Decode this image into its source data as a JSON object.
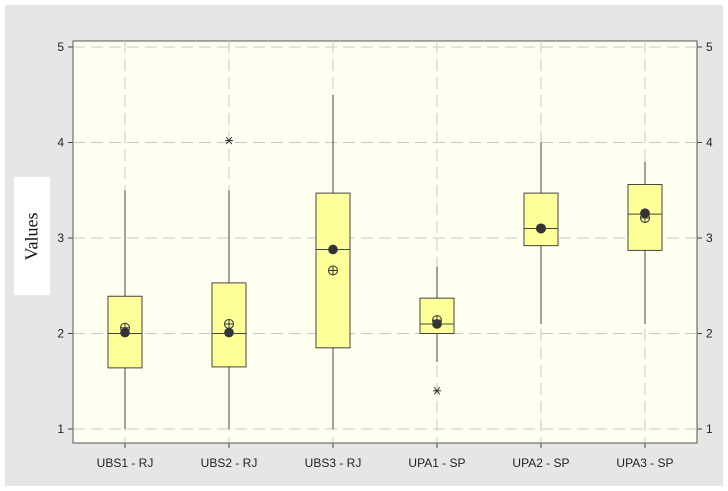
{
  "chart_data": {
    "type": "boxplot",
    "ylabel": "Values",
    "ylim": [
      1,
      5
    ],
    "yticks": [
      "1",
      "2",
      "3",
      "4",
      "5"
    ],
    "grid": true,
    "categories": [
      "UBS1 - RJ",
      "UBS2 - RJ",
      "UBS3 - RJ",
      "UPA1 - SP",
      "UPA2 - SP",
      "UPA3 - SP"
    ],
    "boxes": [
      {
        "category": "UBS1 - RJ",
        "whisker_low": 1.0,
        "q1": 1.64,
        "median": 2.0,
        "q3": 2.39,
        "whisker_high": 3.5,
        "median_dot": 2.01,
        "mean": 2.06,
        "outliers": []
      },
      {
        "category": "UBS2 - RJ",
        "whisker_low": 1.0,
        "q1": 1.65,
        "median": 2.0,
        "q3": 2.53,
        "whisker_high": 3.5,
        "median_dot": 2.01,
        "mean": 2.1,
        "outliers": [
          4.02
        ]
      },
      {
        "category": "UBS3 - RJ",
        "whisker_low": 1.0,
        "q1": 1.85,
        "median": 2.88,
        "q3": 3.47,
        "whisker_high": 4.5,
        "median_dot": 2.88,
        "mean": 2.66,
        "outliers": []
      },
      {
        "category": "UPA1 - SP",
        "whisker_low": 1.7,
        "q1": 2.0,
        "median": 2.1,
        "q3": 2.37,
        "whisker_high": 2.7,
        "median_dot": 2.1,
        "mean": 2.14,
        "outliers": [
          1.4
        ]
      },
      {
        "category": "UPA2 - SP",
        "whisker_low": 2.1,
        "q1": 2.92,
        "median": 3.1,
        "q3": 3.47,
        "whisker_high": 4.0,
        "median_dot": 3.1,
        "mean": 3.1,
        "outliers": []
      },
      {
        "category": "UPA3 - SP",
        "whisker_low": 2.1,
        "q1": 2.87,
        "median": 3.25,
        "q3": 3.56,
        "whisker_high": 3.8,
        "median_dot": 3.26,
        "mean": 3.21,
        "outliers": []
      }
    ],
    "colors": {
      "outer_background": "#e6e6e6",
      "plot_background": "#fffff0",
      "box_fill": "#ffff99",
      "box_stroke": "#444444",
      "gridline": "#c8c8c8",
      "marker": "#333333"
    }
  }
}
